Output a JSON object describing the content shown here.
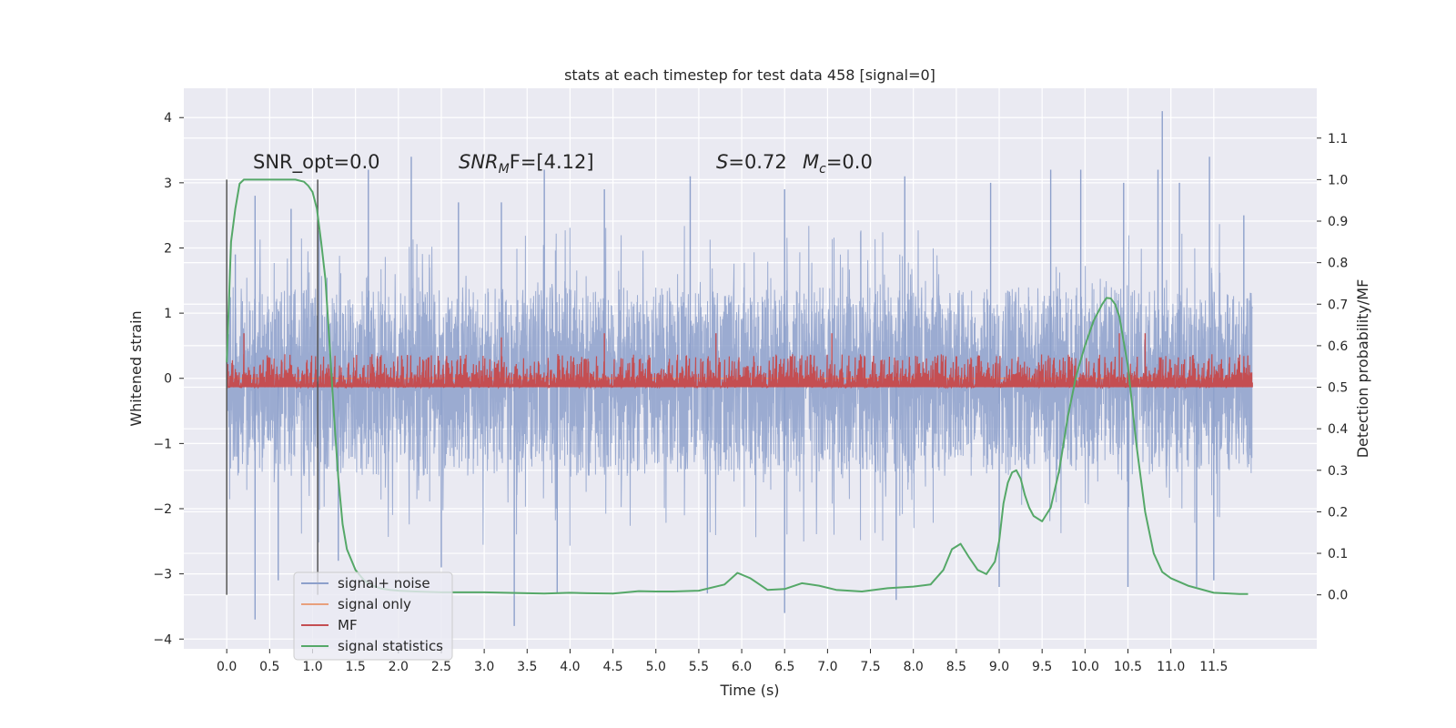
{
  "chart_data": {
    "type": "line",
    "title": "stats at each timestep for test data 458 [signal=0]",
    "xlabel": "Time (s)",
    "ylabel": "Whitened strain",
    "y2label": "Detection probability/MF",
    "xlim": [
      -0.5,
      12.7
    ],
    "ylim": [
      -4.15,
      4.45
    ],
    "y2lim": [
      -0.13,
      1.22
    ],
    "x_ticks": [
      0.0,
      0.5,
      1.0,
      1.5,
      2.0,
      2.5,
      3.0,
      3.5,
      4.0,
      4.5,
      5.0,
      5.5,
      6.0,
      6.5,
      7.0,
      7.5,
      8.0,
      8.5,
      9.0,
      9.5,
      10.0,
      10.5,
      11.0,
      11.5
    ],
    "x_tick_labels": [
      "0.0",
      "0.5",
      "1.0",
      "1.5",
      "2.0",
      "2.5",
      "3.0",
      "3.5",
      "4.0",
      "4.5",
      "5.0",
      "5.5",
      "6.0",
      "6.5",
      "7.0",
      "7.5",
      "8.0",
      "8.5",
      "9.0",
      "9.5",
      "10.0",
      "10.5",
      "11.0",
      "11.5"
    ],
    "y_ticks": [
      -4,
      -3,
      -2,
      -1,
      0,
      1,
      2,
      3,
      4
    ],
    "y_tick_labels": [
      "−4",
      "−3",
      "−2",
      "−1",
      "0",
      "1",
      "2",
      "3",
      "4"
    ],
    "y2_ticks": [
      0.0,
      0.1,
      0.2,
      0.3,
      0.4,
      0.5,
      0.6,
      0.7,
      0.8,
      0.9,
      1.0,
      1.1
    ],
    "y2_tick_labels": [
      "0.0",
      "0.1",
      "0.2",
      "0.3",
      "0.4",
      "0.5",
      "0.6",
      "0.7",
      "0.8",
      "0.9",
      "1.0",
      "1.1"
    ],
    "grid": true,
    "legend_position": "lower-left",
    "annotations": {
      "snr_opt": "SNR_opt=0.0",
      "snr_mf_sym": "SNR",
      "snr_mf_sub": "M",
      "snr_mf_rest": "F=[4.12]",
      "s_sym": "S",
      "s_rest": "=0.72",
      "mc_sym": "M",
      "mc_sub": "c",
      "mc_rest": "=0.0"
    },
    "vertical_lines_x": [
      0.0,
      1.06
    ],
    "series": [
      {
        "name": "signal+ noise",
        "color": "#8da0cb",
        "axis": "left",
        "style": "noise",
        "x_range": [
          0.0,
          11.95
        ],
        "typical_range": [
          -1.5,
          1.4
        ],
        "peaks_high": [
          [
            0.1,
            1.9
          ],
          [
            0.33,
            2.8
          ],
          [
            0.75,
            2.6
          ],
          [
            1.65,
            3.2
          ],
          [
            2.15,
            3.4
          ],
          [
            2.7,
            2.7
          ],
          [
            3.2,
            2.7
          ],
          [
            3.7,
            3.2
          ],
          [
            4.4,
            2.9
          ],
          [
            5.4,
            3.1
          ],
          [
            6.5,
            2.9
          ],
          [
            7.9,
            3.1
          ],
          [
            8.9,
            3.0
          ],
          [
            9.6,
            3.2
          ],
          [
            9.95,
            3.2
          ],
          [
            10.45,
            3.0
          ],
          [
            10.85,
            3.2
          ],
          [
            10.9,
            4.1
          ],
          [
            11.1,
            3.0
          ],
          [
            11.45,
            3.4
          ],
          [
            11.85,
            2.5
          ]
        ],
        "peaks_low": [
          [
            0.33,
            -3.7
          ],
          [
            0.6,
            -3.1
          ],
          [
            1.3,
            -2.8
          ],
          [
            2.5,
            -2.9
          ],
          [
            3.35,
            -3.8
          ],
          [
            3.85,
            -3.3
          ],
          [
            5.6,
            -3.3
          ],
          [
            6.5,
            -3.6
          ],
          [
            7.8,
            -3.4
          ],
          [
            9.0,
            -3.2
          ],
          [
            10.5,
            -3.2
          ],
          [
            11.3,
            -3.2
          ],
          [
            11.5,
            -3.1
          ]
        ]
      },
      {
        "name": "signal only",
        "color": "#e8a07c",
        "axis": "left",
        "x": [
          0.0,
          11.95
        ],
        "y": [
          0.0,
          0.0
        ]
      },
      {
        "name": "MF",
        "color": "#c44e52",
        "axis": "right",
        "style": "noise",
        "x_range": [
          0.0,
          11.95
        ],
        "typical_range": [
          0.5,
          0.58
        ],
        "peaks_high": [
          [
            0.2,
            0.63
          ],
          [
            3.2,
            0.62
          ],
          [
            4.4,
            0.63
          ],
          [
            5.7,
            0.63
          ],
          [
            7.05,
            0.63
          ],
          [
            10.4,
            0.63
          ],
          [
            10.7,
            0.63
          ]
        ]
      },
      {
        "name": "signal statistics",
        "color": "#55a868",
        "axis": "right",
        "x": [
          0.0,
          0.05,
          0.1,
          0.15,
          0.2,
          0.3,
          0.5,
          0.8,
          0.9,
          0.95,
          1.0,
          1.05,
          1.1,
          1.15,
          1.2,
          1.25,
          1.3,
          1.35,
          1.4,
          1.5,
          1.6,
          1.7,
          1.8,
          1.9,
          2.0,
          2.2,
          2.5,
          3.0,
          3.5,
          3.7,
          4.0,
          4.2,
          4.5,
          4.8,
          5.0,
          5.2,
          5.5,
          5.8,
          5.95,
          6.1,
          6.3,
          6.5,
          6.7,
          6.9,
          7.1,
          7.4,
          7.7,
          8.0,
          8.2,
          8.35,
          8.45,
          8.55,
          8.65,
          8.75,
          8.85,
          8.95,
          9.0,
          9.05,
          9.1,
          9.15,
          9.2,
          9.25,
          9.3,
          9.35,
          9.4,
          9.5,
          9.6,
          9.7,
          9.8,
          9.9,
          10.0,
          10.1,
          10.2,
          10.25,
          10.3,
          10.35,
          10.4,
          10.5,
          10.6,
          10.7,
          10.8,
          10.9,
          11.0,
          11.2,
          11.5,
          11.8,
          11.9
        ],
        "y": [
          0.56,
          0.85,
          0.93,
          0.99,
          1.0,
          1.0,
          1.0,
          1.0,
          0.995,
          0.985,
          0.97,
          0.93,
          0.85,
          0.76,
          0.6,
          0.43,
          0.28,
          0.17,
          0.11,
          0.06,
          0.035,
          0.022,
          0.015,
          0.012,
          0.01,
          0.008,
          0.006,
          0.006,
          0.004,
          0.003,
          0.005,
          0.004,
          0.003,
          0.009,
          0.008,
          0.008,
          0.01,
          0.025,
          0.053,
          0.04,
          0.012,
          0.014,
          0.028,
          0.022,
          0.012,
          0.008,
          0.016,
          0.02,
          0.025,
          0.06,
          0.11,
          0.123,
          0.09,
          0.06,
          0.05,
          0.08,
          0.13,
          0.22,
          0.27,
          0.295,
          0.3,
          0.28,
          0.24,
          0.21,
          0.19,
          0.177,
          0.21,
          0.3,
          0.43,
          0.53,
          0.6,
          0.66,
          0.7,
          0.715,
          0.714,
          0.7,
          0.67,
          0.55,
          0.36,
          0.2,
          0.1,
          0.055,
          0.04,
          0.022,
          0.005,
          0.002,
          0.002
        ]
      }
    ]
  }
}
